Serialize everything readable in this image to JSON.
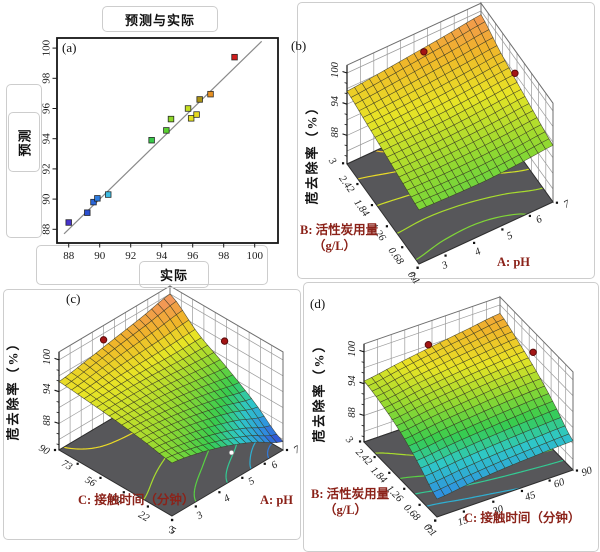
{
  "colors": {
    "floor": "#57575a",
    "wall_grid": "#9b9b9b",
    "wall_border": "#6e6e6e",
    "mesh_line": "rgba(55,55,35,0.85)",
    "axis_label": "#8b2219",
    "tick_text": "#1c1c1c",
    "frame": "#161616",
    "fit_line": "#8a8a8a",
    "design_point": "#a31515",
    "design_point_edge": "#5c0c0c",
    "floor_point": "#ffffff",
    "cmap_range": [
      84,
      101
    ],
    "colormap": [
      [
        0.0,
        "#3333cf"
      ],
      [
        0.15,
        "#2f8fe0"
      ],
      [
        0.3,
        "#2fc8c8"
      ],
      [
        0.42,
        "#37cc4f"
      ],
      [
        0.55,
        "#8ed832"
      ],
      [
        0.68,
        "#e8e426"
      ],
      [
        0.8,
        "#f0b42a"
      ],
      [
        0.9,
        "#f29850"
      ],
      [
        1.0,
        "#f4a091"
      ]
    ]
  },
  "chart_data": [
    {
      "id": "a",
      "type": "scatter",
      "tag": "(a)",
      "title": "预测与实际",
      "xlabel": "实际",
      "ylabel": "预测",
      "xlim": [
        87.5,
        100.8
      ],
      "ylim": [
        87.3,
        100.8
      ],
      "xticks": [
        88,
        90,
        92,
        94,
        96,
        98,
        100
      ],
      "yticks": [
        88,
        90,
        92,
        94,
        96,
        98,
        100
      ],
      "identity_line": [
        [
          87.7,
          87.7
        ],
        [
          100.45,
          100.45
        ]
      ],
      "points": [
        {
          "x": 88.0,
          "y": 88.45,
          "color": "#4633cc"
        },
        {
          "x": 89.2,
          "y": 89.1,
          "color": "#2a4fd0"
        },
        {
          "x": 89.6,
          "y": 89.8,
          "color": "#2b66d8"
        },
        {
          "x": 89.85,
          "y": 90.05,
          "color": "#2e7bdd"
        },
        {
          "x": 90.55,
          "y": 90.3,
          "color": "#3fbce2"
        },
        {
          "x": 93.35,
          "y": 93.9,
          "color": "#3bc84b"
        },
        {
          "x": 94.3,
          "y": 94.55,
          "color": "#59cf30"
        },
        {
          "x": 94.6,
          "y": 95.3,
          "color": "#8ed729"
        },
        {
          "x": 95.7,
          "y": 96.0,
          "color": "#c6de22"
        },
        {
          "x": 95.9,
          "y": 95.35,
          "color": "#e4e020"
        },
        {
          "x": 96.25,
          "y": 95.6,
          "color": "#e7d91e"
        },
        {
          "x": 96.45,
          "y": 96.6,
          "color": "#ab9317"
        },
        {
          "x": 97.15,
          "y": 96.95,
          "color": "#e69023"
        },
        {
          "x": 98.7,
          "y": 99.4,
          "color": "#cf1d1d"
        }
      ]
    },
    {
      "id": "b",
      "type": "surface3d",
      "tag": "(b)",
      "zlabel": "苊去除率（%）",
      "zticks": [
        88,
        94,
        100
      ],
      "xaxis": {
        "label": "A: pH",
        "ticks": [
          "2",
          "3",
          "4",
          "5",
          "6",
          "7"
        ]
      },
      "yaxis": {
        "label": "B: 活性炭用量",
        "label2": "（g/L）",
        "ticks": [
          "3",
          "2.42",
          "1.84",
          "1.26",
          "0.68",
          "0.1"
        ]
      },
      "grid": [
        [
          92.9,
          92.7,
          92.6,
          92.9,
          93.4
        ],
        [
          93.8,
          93.7,
          93.8,
          94.1,
          94.6
        ],
        [
          94.7,
          94.8,
          95.0,
          95.4,
          95.9
        ],
        [
          95.6,
          95.9,
          96.3,
          96.8,
          97.4
        ],
        [
          96.5,
          97.1,
          97.8,
          98.5,
          99.3
        ]
      ],
      "design_points_above": [
        {
          "u": 0.52,
          "v": 0.9,
          "z": 99.8
        },
        {
          "u": 0.92,
          "v": 0.38,
          "z": 100.9
        }
      ],
      "design_points_floor": [
        {
          "u": 0.83,
          "v": 0.5
        }
      ]
    },
    {
      "id": "c",
      "type": "surface3d",
      "tag": "(c)",
      "zlabel": "苊去除率（%）",
      "zticks": [
        88,
        94,
        100
      ],
      "xaxis": {
        "label": "A: pH",
        "ticks": [
          "2",
          "3",
          "4",
          "5",
          "6",
          "7"
        ]
      },
      "yaxis": {
        "label": "C: 接触时间（分钟）",
        "label2": "",
        "ticks": [
          "90",
          "73",
          "56",
          "39",
          "22",
          "5"
        ]
      },
      "grid": [
        [
          93.0,
          91.8,
          90.0,
          87.6,
          84.6
        ],
        [
          94.0,
          93.3,
          92.2,
          90.7,
          88.8
        ],
        [
          94.8,
          94.5,
          94.0,
          93.2,
          92.4
        ],
        [
          95.4,
          95.6,
          95.6,
          95.5,
          95.6
        ],
        [
          95.9,
          96.8,
          97.8,
          98.8,
          100.0
        ]
      ],
      "design_points_above": [
        {
          "u": 0.3,
          "v": 0.9,
          "z": 101.3
        },
        {
          "u": 0.83,
          "v": 0.35,
          "z": 101.3
        }
      ],
      "design_points_floor": [
        {
          "u": 0.75,
          "v": 0.21
        }
      ]
    },
    {
      "id": "d",
      "type": "surface3d",
      "tag": "(d)",
      "zlabel": "苊去除率（%）",
      "zticks": [
        88,
        94,
        100
      ],
      "xaxis": {
        "label": "C: 接触时间（分钟）",
        "ticks": [
          "3",
          "15",
          "30",
          "45",
          "60",
          "90"
        ]
      },
      "yaxis": {
        "label": "B: 活性炭用量",
        "label2": "（g/L）",
        "ticks": [
          "3",
          "2.42",
          "1.84",
          "1.26",
          "0.68",
          "0.1"
        ]
      },
      "grid": [
        [
          86.4,
          87.2,
          87.8,
          88.2,
          88.5
        ],
        [
          89.4,
          90.2,
          90.8,
          91.3,
          91.7
        ],
        [
          91.9,
          92.8,
          93.5,
          94.1,
          94.5
        ],
        [
          93.5,
          94.5,
          95.3,
          96.0,
          96.6
        ],
        [
          94.5,
          95.6,
          96.6,
          97.5,
          98.4
        ]
      ],
      "design_points_above": [
        {
          "u": 0.35,
          "v": 0.77,
          "z": 101.5
        },
        {
          "u": 0.9,
          "v": 0.36,
          "z": 101.0
        }
      ],
      "design_points_floor": [
        {
          "u": 0.37,
          "v": 0.6
        }
      ]
    }
  ]
}
